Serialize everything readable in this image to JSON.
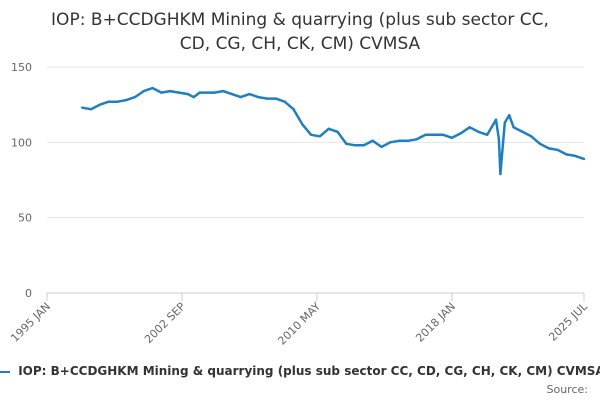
{
  "chart_data": {
    "type": "line",
    "title_lines": [
      "IOP: B+CCDGHKM Mining & quarrying (plus sub sector CC,",
      "CD, CG, CH, CK, CM) CVMSA"
    ],
    "ylim": [
      0,
      150
    ],
    "y_ticks": [
      0,
      50,
      100,
      150
    ],
    "x_ticks": [
      {
        "label": "1995 JAN",
        "date": "1995-01"
      },
      {
        "label": "2002 SEP",
        "date": "2002-09"
      },
      {
        "label": "2010 MAY",
        "date": "2010-05"
      },
      {
        "label": "2018 JAN",
        "date": "2018-01"
      },
      {
        "label": "2025 JUL",
        "date": "2025-07"
      }
    ],
    "xlim": [
      "1995-01",
      "2025-07"
    ],
    "series": [
      {
        "name": "IOP: B+CCDGHKM Mining & quarrying (plus sub sector CC, CD, CG, CH, CK, CM) CVMSA",
        "color": "#1f7fc0",
        "points": [
          [
            "1997-01",
            123
          ],
          [
            "1997-07",
            122
          ],
          [
            "1998-01",
            125
          ],
          [
            "1998-07",
            127
          ],
          [
            "1999-01",
            127
          ],
          [
            "1999-07",
            128
          ],
          [
            "2000-01",
            130
          ],
          [
            "2000-07",
            134
          ],
          [
            "2001-01",
            136
          ],
          [
            "2001-07",
            133
          ],
          [
            "2002-01",
            134
          ],
          [
            "2002-07",
            133
          ],
          [
            "2003-01",
            132
          ],
          [
            "2003-05",
            130
          ],
          [
            "2003-09",
            133
          ],
          [
            "2004-01",
            133
          ],
          [
            "2004-07",
            133
          ],
          [
            "2005-01",
            134
          ],
          [
            "2005-07",
            132
          ],
          [
            "2006-01",
            130
          ],
          [
            "2006-07",
            132
          ],
          [
            "2007-01",
            130
          ],
          [
            "2007-07",
            129
          ],
          [
            "2008-01",
            129
          ],
          [
            "2008-07",
            127
          ],
          [
            "2009-01",
            122
          ],
          [
            "2009-07",
            112
          ],
          [
            "2010-01",
            105
          ],
          [
            "2010-07",
            104
          ],
          [
            "2011-01",
            109
          ],
          [
            "2011-07",
            107
          ],
          [
            "2012-01",
            99
          ],
          [
            "2012-07",
            98
          ],
          [
            "2013-01",
            98
          ],
          [
            "2013-07",
            101
          ],
          [
            "2014-01",
            97
          ],
          [
            "2014-07",
            100
          ],
          [
            "2015-01",
            101
          ],
          [
            "2015-07",
            101
          ],
          [
            "2016-01",
            102
          ],
          [
            "2016-07",
            105
          ],
          [
            "2017-01",
            105
          ],
          [
            "2017-07",
            105
          ],
          [
            "2018-01",
            103
          ],
          [
            "2018-07",
            106
          ],
          [
            "2019-01",
            110
          ],
          [
            "2019-07",
            107
          ],
          [
            "2020-01",
            105
          ],
          [
            "2020-04",
            110
          ],
          [
            "2020-07",
            115
          ],
          [
            "2020-09",
            102
          ],
          [
            "2020-10",
            79
          ],
          [
            "2020-11",
            90
          ],
          [
            "2021-01",
            113
          ],
          [
            "2021-04",
            118
          ],
          [
            "2021-07",
            110
          ],
          [
            "2022-01",
            107
          ],
          [
            "2022-07",
            104
          ],
          [
            "2023-01",
            99
          ],
          [
            "2023-07",
            96
          ],
          [
            "2024-01",
            95
          ],
          [
            "2024-07",
            92
          ],
          [
            "2025-01",
            91
          ],
          [
            "2025-07",
            89
          ]
        ]
      }
    ],
    "legend_position": "bottom",
    "grid": true
  },
  "source_label": "Source:"
}
